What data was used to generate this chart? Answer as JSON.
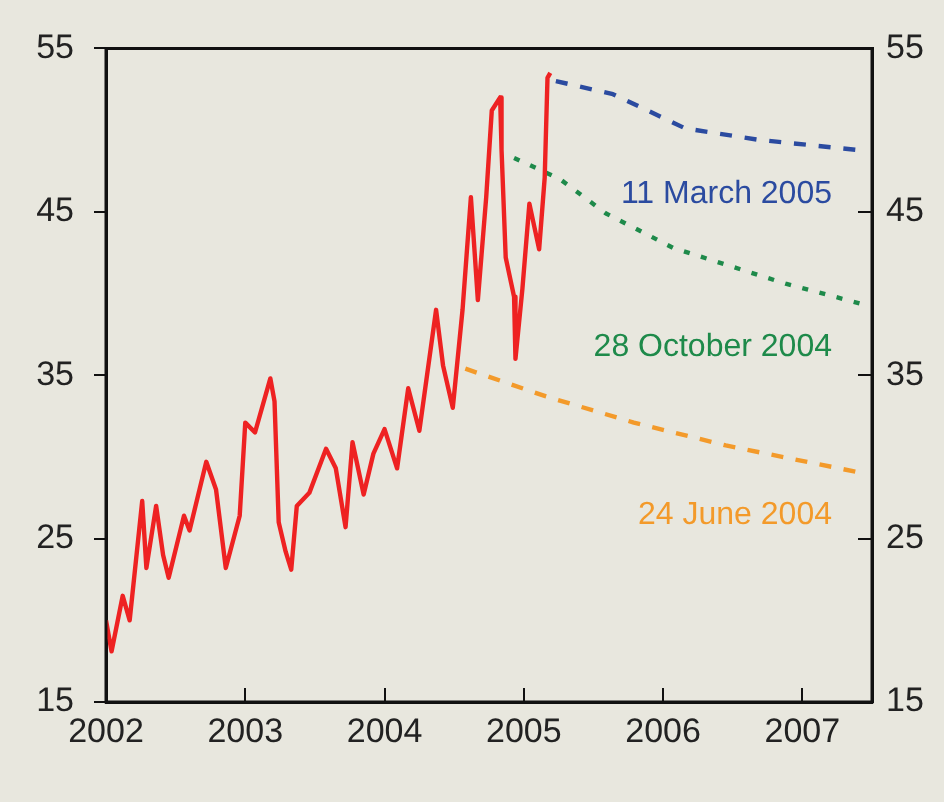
{
  "chart_data": {
    "type": "line",
    "xlim": [
      2002,
      2007.5
    ],
    "xticks": [
      2002,
      2003,
      2004,
      2005,
      2006,
      2007
    ],
    "ylim": [
      15,
      55
    ],
    "yticks": [
      15,
      25,
      35,
      45,
      55
    ],
    "y2lim": [
      15,
      55
    ],
    "y2ticks": [
      15,
      25,
      35,
      45,
      55
    ],
    "grid": false,
    "legend": false,
    "marker": "none",
    "series": [
      {
        "color": "#ee2222",
        "line_style": "solid",
        "x": [
          2002.0,
          2002.04,
          2002.12,
          2002.17,
          2002.26,
          2002.29,
          2002.36,
          2002.41,
          2002.45,
          2002.56,
          2002.6,
          2002.72,
          2002.79,
          2002.86,
          2002.96,
          2003.0,
          2003.07,
          2003.18,
          2003.21,
          2003.24,
          2003.29,
          2003.33,
          2003.37,
          2003.46,
          2003.58,
          2003.65,
          2003.72,
          2003.77,
          2003.85,
          2003.92,
          2004.0,
          2004.09,
          2004.17,
          2004.25,
          2004.37,
          2004.42,
          2004.49,
          2004.56,
          2004.62,
          2004.67,
          2004.73,
          2004.77,
          2004.83,
          2004.84,
          2004.87,
          2004.93,
          2004.94,
          2004.99,
          2005.04,
          2005.11,
          2005.15,
          2005.17,
          2005.19
        ],
        "values": [
          20,
          18.1,
          21.5,
          20,
          27.3,
          23.2,
          27,
          24,
          22.6,
          26.4,
          25.5,
          29.7,
          28,
          23.2,
          26.4,
          32.1,
          31.5,
          34.8,
          33.4,
          26,
          24.2,
          23.1,
          27,
          27.8,
          30.5,
          29.3,
          25.7,
          30.9,
          27.7,
          30.2,
          31.7,
          29.3,
          34.2,
          31.6,
          39,
          35.6,
          33,
          39,
          45.9,
          39.6,
          45.9,
          51.2,
          52,
          48.8,
          42.2,
          39.8,
          36,
          40.3,
          45.5,
          42.7,
          47.1,
          53.2,
          53.5
        ]
      },
      {
        "name": "11 March 2005",
        "color": "#2b4ba0",
        "line_style": "dashed",
        "x": [
          2005.23,
          2005.64,
          2006.16,
          2006.69,
          2007.38
        ],
        "values": [
          53,
          52.2,
          50.1,
          49.4,
          48.8
        ]
      },
      {
        "name": "28 October 2004",
        "color": "#1e8a4a",
        "line_style": "dotted",
        "x": [
          2004.93,
          2005.26,
          2005.59,
          2006.07,
          2006.88,
          2007.41
        ],
        "values": [
          48.3,
          47,
          44.9,
          42.8,
          40.6,
          39.4
        ]
      },
      {
        "name": "24 June 2004",
        "color": "#f39a2a",
        "line_style": "dashed",
        "x": [
          2004.58,
          2005.16,
          2005.79,
          2006.45,
          2007.38
        ],
        "values": [
          35.4,
          33.7,
          32.1,
          30.7,
          29.1
        ]
      }
    ]
  }
}
